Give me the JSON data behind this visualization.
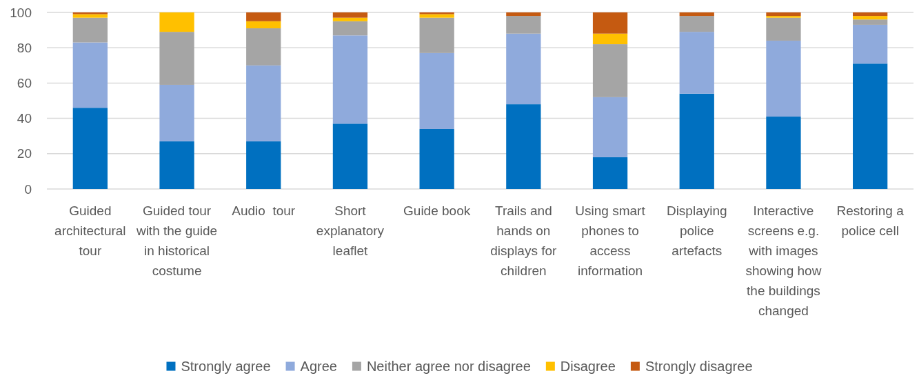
{
  "chart_data": {
    "type": "bar",
    "stacked": true,
    "categories": [
      "Guided architectural tour",
      "Guided tour with the guide in historical costume",
      "Audio  tour",
      "Short explanatory leaflet",
      "Guide book",
      "Trails and hands on displays for children",
      "Using smart phones to access information",
      "Displaying police artefacts",
      "Interactive screens e.g. with images showing how the buildings changed",
      "Restoring a police cell"
    ],
    "series": [
      {
        "name": "Strongly agree",
        "color": "#0070c0",
        "values": [
          46,
          27,
          27,
          37,
          34,
          48,
          18,
          54,
          41,
          71
        ]
      },
      {
        "name": "Agree",
        "color": "#8faadc",
        "values": [
          37,
          32,
          43,
          50,
          43,
          40,
          34,
          35,
          43,
          22
        ]
      },
      {
        "name": "Neither agree nor disagree",
        "color": "#a5a5a5",
        "values": [
          14,
          30,
          21,
          8,
          20,
          10,
          30,
          9,
          13,
          3
        ]
      },
      {
        "name": "Disagree",
        "color": "#ffc000",
        "values": [
          2,
          11,
          4,
          2,
          2,
          0,
          6,
          0,
          1,
          2
        ]
      },
      {
        "name": "Strongly disagree",
        "color": "#c55a11",
        "values": [
          1,
          0,
          5,
          3,
          1,
          2,
          12,
          2,
          2,
          2
        ]
      }
    ],
    "ylim": [
      0,
      100
    ],
    "yticks": [
      0,
      20,
      40,
      60,
      80,
      100
    ],
    "grid": "y",
    "legend": "bottom"
  }
}
